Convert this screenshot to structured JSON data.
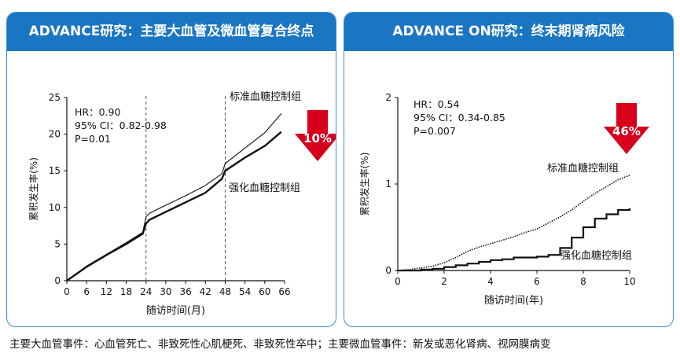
{
  "footnote": "主要大血管事件：心血管死亡、非致死性心肌梗死、非致死性卒中；主要微血管事件：新发或恶化肾病、视网膜病变",
  "colors": {
    "header": "#1a75c2",
    "border": "#3a8fd6",
    "arrow": "#d6001c"
  },
  "panels": [
    {
      "id": "left",
      "header": "ADVANCE研究：主要大血管及微血管复合终点",
      "stats": [
        "HR：0.90",
        "95% CI：0.82-0.98",
        "P=0.01"
      ],
      "arrow_label": "10%",
      "annot_top": "标准血糖控制组",
      "annot_bottom": "强化血糖控制组",
      "chart_data": {
        "type": "line",
        "xlabel": "随访时间(月)",
        "ylabel": "累积发生率(%)",
        "xlim": [
          0,
          66
        ],
        "ylim": [
          0,
          25
        ],
        "xticks": [
          "0",
          "6",
          "12",
          "18",
          "24",
          "30",
          "36",
          "42",
          "48",
          "54",
          "60",
          "66"
        ],
        "yticks": [
          "0",
          "5",
          "10",
          "15",
          "20",
          "25"
        ],
        "vlines": [
          24,
          48
        ],
        "series": [
          {
            "name": "标准血糖控制组",
            "style": "thin",
            "x": [
              0,
              6,
              12,
              18,
              23,
              24,
              25,
              30,
              36,
              42,
              47,
              48,
              54,
              60,
              65
            ],
            "y": [
              0,
              2.0,
              3.6,
              5.2,
              6.6,
              8.7,
              9.2,
              10.3,
              11.6,
              13.0,
              14.6,
              16.0,
              18.1,
              20.2,
              22.8
            ]
          },
          {
            "name": "强化血糖控制组",
            "style": "bold",
            "x": [
              0,
              6,
              12,
              18,
              23,
              24,
              25,
              30,
              36,
              42,
              47,
              48,
              54,
              60,
              65
            ],
            "y": [
              0,
              1.9,
              3.5,
              5.0,
              6.4,
              7.8,
              8.3,
              9.4,
              10.7,
              12.0,
              13.9,
              15.0,
              16.8,
              18.4,
              20.3
            ]
          }
        ]
      }
    },
    {
      "id": "right",
      "header": "ADVANCE ON研究：终末期肾病风险",
      "stats": [
        "HR：0.54",
        "95% CI：0.34-0.85",
        "P=0.007"
      ],
      "arrow_label": "46%",
      "annot_top": "标准血糖控制组",
      "annot_bottom": "强化血糖控制组",
      "chart_data": {
        "type": "line",
        "xlabel": "随访时间(年)",
        "ylabel": "累积发生率(%)",
        "xlim": [
          0,
          10
        ],
        "ylim": [
          0,
          2
        ],
        "xticks": [
          "0",
          "2",
          "4",
          "6",
          "8",
          "10"
        ],
        "yticks": [
          "0",
          "1",
          "2"
        ],
        "vlines": [],
        "series": [
          {
            "name": "标准血糖控制组",
            "style": "dotted",
            "x": [
              0,
              0.5,
              1,
              1.5,
              2,
              2.5,
              3,
              3.5,
              4,
              4.5,
              5,
              5.5,
              6,
              6.5,
              7,
              7.5,
              8,
              8.5,
              9,
              9.5,
              10
            ],
            "y": [
              0,
              0.01,
              0.03,
              0.05,
              0.09,
              0.15,
              0.22,
              0.27,
              0.31,
              0.35,
              0.39,
              0.44,
              0.48,
              0.55,
              0.62,
              0.7,
              0.8,
              0.89,
              0.97,
              1.05,
              1.1
            ]
          },
          {
            "name": "强化血糖控制组",
            "style": "step",
            "x": [
              0,
              0.5,
              1,
              1.5,
              2,
              2.5,
              3,
              3.5,
              4,
              4.5,
              5,
              5.5,
              6,
              6.5,
              7,
              7.5,
              8,
              8.5,
              9,
              9.5,
              10
            ],
            "y": [
              0,
              0.0,
              0.01,
              0.02,
              0.04,
              0.06,
              0.08,
              0.1,
              0.12,
              0.13,
              0.15,
              0.15,
              0.16,
              0.18,
              0.26,
              0.38,
              0.5,
              0.6,
              0.65,
              0.7,
              0.72
            ]
          }
        ]
      }
    }
  ]
}
